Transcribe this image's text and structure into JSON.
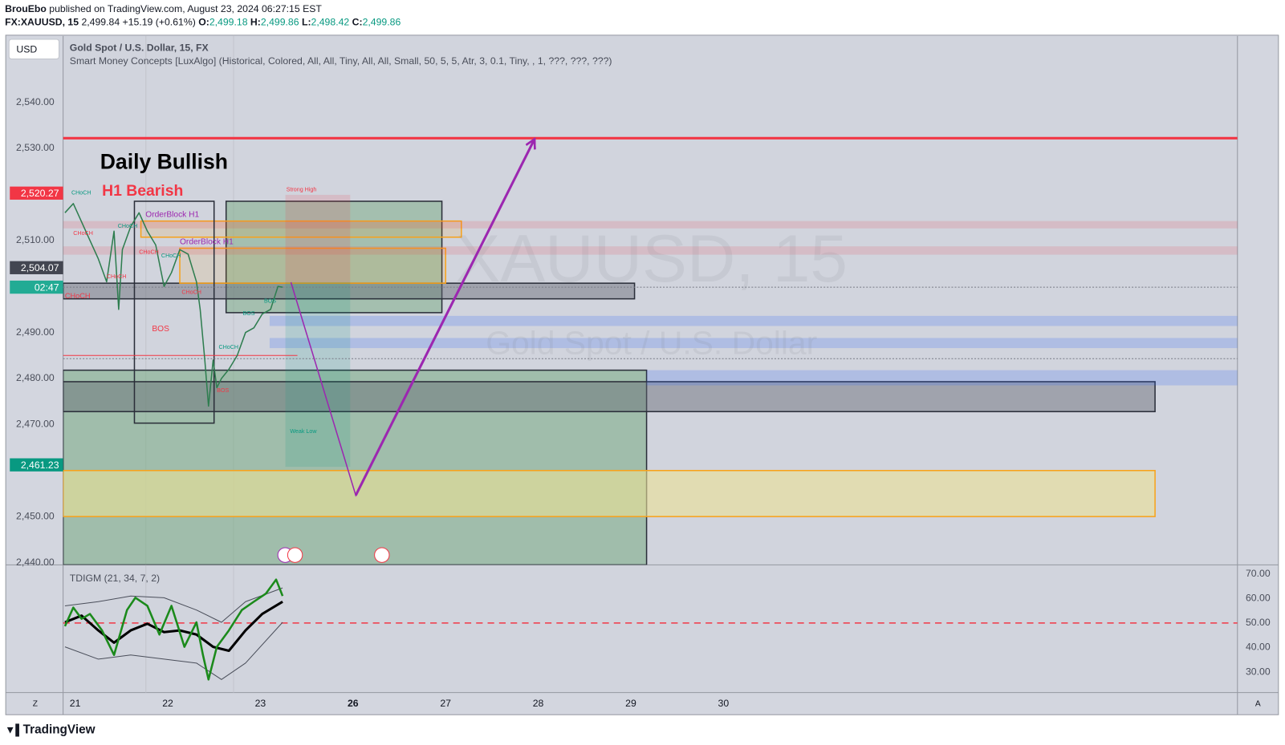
{
  "header": {
    "publisher": "BrouEbo",
    "published": "published on TradingView.com, August 23, 2024 06:27:15 EST",
    "symbol": "FX:XAUUSD, 15",
    "last": "2,499.84",
    "change": "+15.19 (+0.61%)",
    "open_label": "O:",
    "open": "2,499.18",
    "high_label": "H:",
    "high": "2,499.86",
    "low_label": "L:",
    "low": "2,498.42",
    "close_label": "C:",
    "close": "2,499.86"
  },
  "toolbar": {
    "currency": "USD",
    "zoom": "Z",
    "auto": "A",
    "brand": "TradingView"
  },
  "chart_data": [
    {
      "type": "line",
      "title": "Gold Spot / U.S. Dollar, 15, FX",
      "subtitle": "Smart Money Concepts [LuxAlgo] (Historical, Colored, All, All, Tiny, All, All, Small, 50, 5, 5, Atr, 3, 0.1, Tiny, , 1, ???, ???, ???)",
      "watermark": "XAUUSD, 15",
      "watermark_subtitle": "Gold Spot / U.S. Dollar",
      "xlim": [
        -0.13,
        12.55
      ],
      "xticks": [
        {
          "value": 0,
          "label": "21"
        },
        {
          "value": 1,
          "label": "22"
        },
        {
          "value": 2,
          "label": "23"
        },
        {
          "value": 3,
          "label": "26"
        },
        {
          "value": 4,
          "label": "27"
        },
        {
          "value": 5,
          "label": "28"
        },
        {
          "value": 6,
          "label": "29"
        },
        {
          "value": 7,
          "label": "30"
        }
      ],
      "ylim": [
        2439.5,
        2554.4
      ],
      "yticks": [
        {
          "value": 2440,
          "label": "2,440.00"
        },
        {
          "value": 2450,
          "label": "2,450.00"
        },
        {
          "value": 2470,
          "label": "2,470.00"
        },
        {
          "value": 2480,
          "label": "2,480.00"
        },
        {
          "value": 2490,
          "label": "2,490.00"
        },
        {
          "value": 2510,
          "label": "2,510.00"
        },
        {
          "value": 2530,
          "label": "2,530.00"
        },
        {
          "value": 2540,
          "label": "2,540.00"
        }
      ],
      "series": [
        {
          "color": "#2e7d4f",
          "x": [
            -0.11,
            -0.02,
            0.07,
            0.16,
            0.25,
            0.34,
            0.42,
            0.47,
            0.51,
            0.6,
            0.69,
            0.78,
            0.87,
            0.96,
            1.04,
            1.13,
            1.22,
            1.31,
            1.35,
            1.4,
            1.44,
            1.49,
            1.53,
            1.58,
            1.66,
            1.75,
            1.84,
            1.93,
            2.02,
            2.11,
            2.19,
            2.24
          ],
          "values": [
            2516,
            2518,
            2514,
            2510,
            2506,
            2501,
            2512,
            2495,
            2508,
            2513,
            2516,
            2512,
            2509,
            2500,
            2503,
            2508,
            2507,
            2501,
            2495,
            2484,
            2474,
            2484,
            2478,
            2480,
            2482,
            2485,
            2490,
            2491,
            2494,
            2495,
            2500,
            2499.84
          ]
        }
      ],
      "price_labels": [
        {
          "value": 2520.27,
          "label": "2,520.27",
          "color": "#f23645"
        },
        {
          "value": 2504.07,
          "label": "2,504.07",
          "color": "#434651"
        },
        {
          "value": 2499.84,
          "label": "02:47",
          "color": "#22ab94"
        },
        {
          "value": 2461.23,
          "label": "2,461.23",
          "color": "#089981"
        }
      ],
      "levels": [
        {
          "value": 2532.2,
          "color": "#f23645",
          "width": 3
        },
        {
          "value": 2485.0,
          "x_end": 2.4,
          "color": "#f23645",
          "width": 1
        },
        {
          "value": 2499.84,
          "color": "#787b86",
          "width": 1,
          "dash": "2 2"
        },
        {
          "value": 2484.3,
          "color": "#787b86",
          "width": 1,
          "dash": "2 2"
        }
      ],
      "zones": [
        {
          "x": [
            -0.13,
            6.17
          ],
          "y": [
            2439.5,
            2481.8
          ],
          "fill": "rgba(120,170,130,0.55)",
          "stroke": "#2a2e39"
        },
        {
          "x": [
            -0.13,
            11.66
          ],
          "y": [
            2472.8,
            2479.3
          ],
          "fill": "rgba(100,105,115,0.45)",
          "stroke": "#2a2e39"
        },
        {
          "x": [
            -0.13,
            11.66
          ],
          "y": [
            2450.0,
            2460.0
          ],
          "fill": "rgba(235,225,150,0.6)",
          "stroke": "#f7a21b"
        },
        {
          "x": [
            1.63,
            3.96
          ],
          "y": [
            2494.3,
            2518.5
          ],
          "fill": "rgba(120,170,130,0.5)",
          "stroke": "#2a2e39"
        },
        {
          "x": [
            -0.13,
            6.04
          ],
          "y": [
            2497.3,
            2500.7
          ],
          "fill": "rgba(100,105,115,0.45)",
          "stroke": "#2a2e39"
        },
        {
          "x": [
            0.71,
            4.17
          ],
          "y": [
            2510.7,
            2514.2
          ],
          "fill": "rgba(247,162,27,0.15)",
          "stroke": "#f7a21b"
        },
        {
          "x": [
            1.13,
            4.0
          ],
          "y": [
            2500.7,
            2508.3
          ],
          "fill": "rgba(247,162,27,0.12)",
          "stroke": "#f7a21b"
        },
        {
          "x": [
            -0.13,
            12.55
          ],
          "y": [
            2512.6,
            2514.2
          ],
          "fill": "rgba(242,54,69,0.15)",
          "stroke": "none"
        },
        {
          "x": [
            -0.13,
            12.55
          ],
          "y": [
            2506.9,
            2508.7
          ],
          "fill": "rgba(242,54,69,0.15)",
          "stroke": "none"
        },
        {
          "x": [
            2.1,
            12.55
          ],
          "y": [
            2491.4,
            2493.6
          ],
          "fill": "rgba(41,98,255,0.2)",
          "stroke": "none"
        },
        {
          "x": [
            2.1,
            12.55
          ],
          "y": [
            2486.6,
            2488.8
          ],
          "fill": "rgba(41,98,255,0.2)",
          "stroke": "none"
        },
        {
          "x": [
            6.17,
            12.55
          ],
          "y": [
            2478.5,
            2481.8
          ],
          "fill": "rgba(41,98,255,0.2)",
          "stroke": "none"
        },
        {
          "x": [
            2.27,
            2.97
          ],
          "y": [
            2500.9,
            2519.9
          ],
          "fill": "rgba(242,54,69,0.15)",
          "stroke": "none"
        },
        {
          "x": [
            2.27,
            2.97
          ],
          "y": [
            2460.8,
            2500.9
          ],
          "fill": "rgba(8,153,129,0.15)",
          "stroke": "none"
        },
        {
          "x": [
            0.64,
            1.5
          ],
          "y": [
            2470.3,
            2518.5
          ],
          "fill": "none",
          "stroke": "#2a2e39"
        }
      ],
      "projection": {
        "x": [
          2.33,
          3.03,
          4.96
        ],
        "y": [
          2500.9,
          2454.6,
          2532.0
        ],
        "color": "#9c27b0"
      },
      "annotations": [
        {
          "text": "Daily Bullish",
          "x": 0.27,
          "y": 2526.8,
          "color": "#000000",
          "size": 26,
          "bold": true
        },
        {
          "text": "H1 Bearish",
          "x": 0.29,
          "y": 2520.6,
          "color": "#f23645",
          "size": 19,
          "bold": true
        },
        {
          "text": "OrderBlock H1",
          "x": 0.76,
          "y": 2515.6,
          "color": "#9c27b0",
          "size": 10,
          "bold": false
        },
        {
          "text": "OrderBlock H1",
          "x": 1.13,
          "y": 2509.6,
          "color": "#9c27b0",
          "size": 10,
          "bold": false
        },
        {
          "text": "Strong High",
          "x": 2.28,
          "y": 2521.0,
          "color": "#f23645",
          "size": 7,
          "bold": false
        },
        {
          "text": "Weak Low",
          "x": 2.32,
          "y": 2468.5,
          "color": "#089981",
          "size": 7,
          "bold": false
        },
        {
          "text": "BOS",
          "x": 0.83,
          "y": 2490.7,
          "color": "#f23645",
          "size": 10,
          "bold": false
        },
        {
          "text": "CHoCH",
          "x": -0.04,
          "y": 2520.3,
          "color": "#089981",
          "size": 7,
          "bold": false
        },
        {
          "text": "CHoCH",
          "x": -0.02,
          "y": 2511.5,
          "color": "#f23645",
          "size": 7,
          "bold": false
        },
        {
          "text": "CHoCH",
          "x": -0.11,
          "y": 2497.8,
          "color": "#f23645",
          "size": 9,
          "bold": false
        },
        {
          "text": "CHoCH",
          "x": 0.46,
          "y": 2513.1,
          "color": "#089981",
          "size": 7,
          "bold": false
        },
        {
          "text": "CHoCH",
          "x": 0.34,
          "y": 2502.1,
          "color": "#f23645",
          "size": 7,
          "bold": false
        },
        {
          "text": "CHoCH",
          "x": 0.69,
          "y": 2507.4,
          "color": "#f23645",
          "size": 7,
          "bold": false
        },
        {
          "text": "CHoCH",
          "x": 0.93,
          "y": 2506.6,
          "color": "#089981",
          "size": 7,
          "bold": false
        },
        {
          "text": "CHoCH",
          "x": 1.15,
          "y": 2498.7,
          "color": "#f23645",
          "size": 7,
          "bold": false
        },
        {
          "text": "CHoCH",
          "x": 1.55,
          "y": 2486.8,
          "color": "#089981",
          "size": 7,
          "bold": false
        },
        {
          "text": "BOS",
          "x": 1.53,
          "y": 2477.4,
          "color": "#f23645",
          "size": 7,
          "bold": false
        },
        {
          "text": "BOS",
          "x": 1.81,
          "y": 2494.1,
          "color": "#089981",
          "size": 7,
          "bold": false
        },
        {
          "text": "BOS",
          "x": 2.04,
          "y": 2496.8,
          "color": "#089981",
          "size": 7,
          "bold": false
        }
      ]
    },
    {
      "type": "line",
      "title": "TDIGM (21, 34, 7, 2)",
      "xlim": [
        -0.13,
        12.55
      ],
      "ylim": [
        21.67,
        73.67
      ],
      "yticks": [
        {
          "value": 30,
          "label": "30.00"
        },
        {
          "value": 40,
          "label": "40.00"
        },
        {
          "value": 50,
          "label": "50.00"
        },
        {
          "value": 60,
          "label": "60.00"
        },
        {
          "value": 70,
          "label": "70.00"
        }
      ],
      "levels": [
        {
          "value": 50,
          "color": "#f23645",
          "width": 1.5,
          "dash": "8 6"
        }
      ],
      "series": [
        {
          "color": "#4a4e5a",
          "width": 1,
          "x": [
            -0.11,
            0.25,
            0.6,
            0.96,
            1.31,
            1.58,
            1.84,
            2.24
          ],
          "values": [
            57,
            58.7,
            61,
            60.3,
            55.3,
            50.3,
            58.7,
            64.3
          ]
        },
        {
          "color": "#4a4e5a",
          "width": 1,
          "x": [
            -0.11,
            0.25,
            0.6,
            0.96,
            1.31,
            1.58,
            1.84,
            2.24
          ],
          "values": [
            40.3,
            35.3,
            37,
            35.3,
            33.7,
            27,
            33.7,
            50.3
          ]
        },
        {
          "color": "#000000",
          "width": 3,
          "x": [
            -0.11,
            0.07,
            0.25,
            0.42,
            0.6,
            0.78,
            0.96,
            1.13,
            1.31,
            1.49,
            1.66,
            1.84,
            2.02,
            2.24
          ],
          "values": [
            50.3,
            53,
            47,
            42,
            47,
            49.7,
            46.3,
            47,
            45.3,
            40.3,
            38.7,
            47,
            53.7,
            58.7
          ]
        },
        {
          "color": "#1b8a1b",
          "width": 2.5,
          "x": [
            -0.11,
            -0.02,
            0.07,
            0.16,
            0.29,
            0.42,
            0.56,
            0.65,
            0.78,
            0.91,
            1.04,
            1.18,
            1.31,
            1.38,
            1.44,
            1.53,
            1.66,
            1.8,
            1.93,
            2.06,
            2.17,
            2.24
          ],
          "values": [
            48.7,
            56.3,
            51.7,
            53.7,
            47,
            37,
            55.3,
            60.3,
            57,
            45.3,
            57,
            40.3,
            50.3,
            37,
            27,
            40.3,
            47,
            55.3,
            58.7,
            62,
            67.7,
            61
          ]
        }
      ]
    }
  ]
}
